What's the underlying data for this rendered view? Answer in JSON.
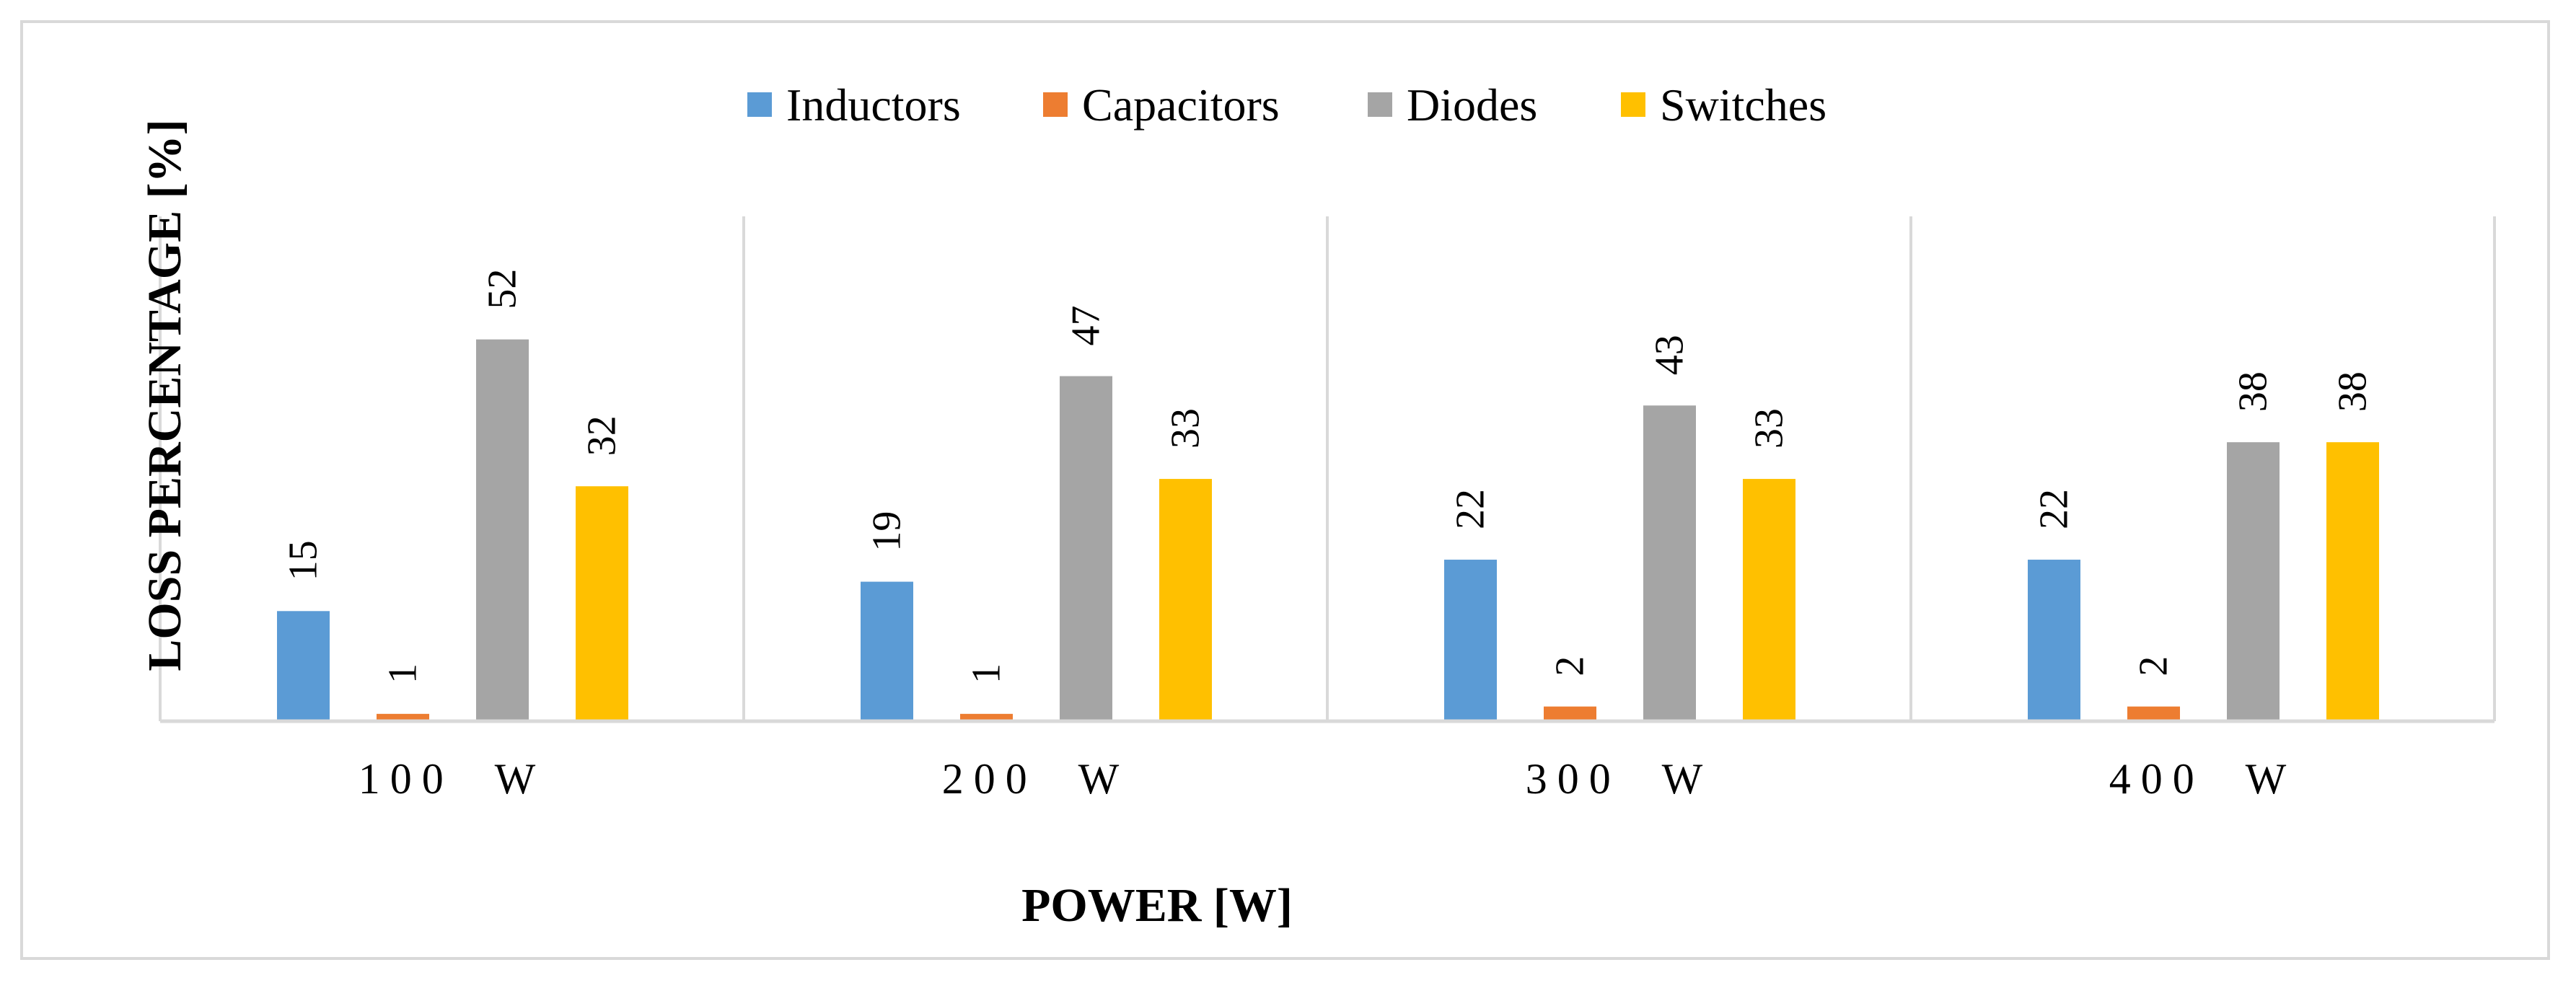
{
  "chart_data": {
    "type": "bar",
    "title": "",
    "xlabel": "POWER [W]",
    "ylabel": "LOSS PERCENTAGE [%]",
    "categories": [
      "100  W",
      "200  W",
      "300  W",
      "400  W"
    ],
    "series": [
      {
        "name": "Inductors",
        "color": "#5B9BD5",
        "values": [
          15,
          19,
          22,
          22
        ]
      },
      {
        "name": "Capacitors",
        "color": "#ED7D31",
        "values": [
          1,
          1,
          2,
          2
        ]
      },
      {
        "name": "Diodes",
        "color": "#A5A5A5",
        "values": [
          52,
          47,
          43,
          38
        ]
      },
      {
        "name": "Switches",
        "color": "#FFC000",
        "values": [
          32,
          33,
          33,
          38
        ]
      }
    ],
    "ylim": [
      0,
      60
    ],
    "legend_position": "top-center",
    "grid": false
  }
}
